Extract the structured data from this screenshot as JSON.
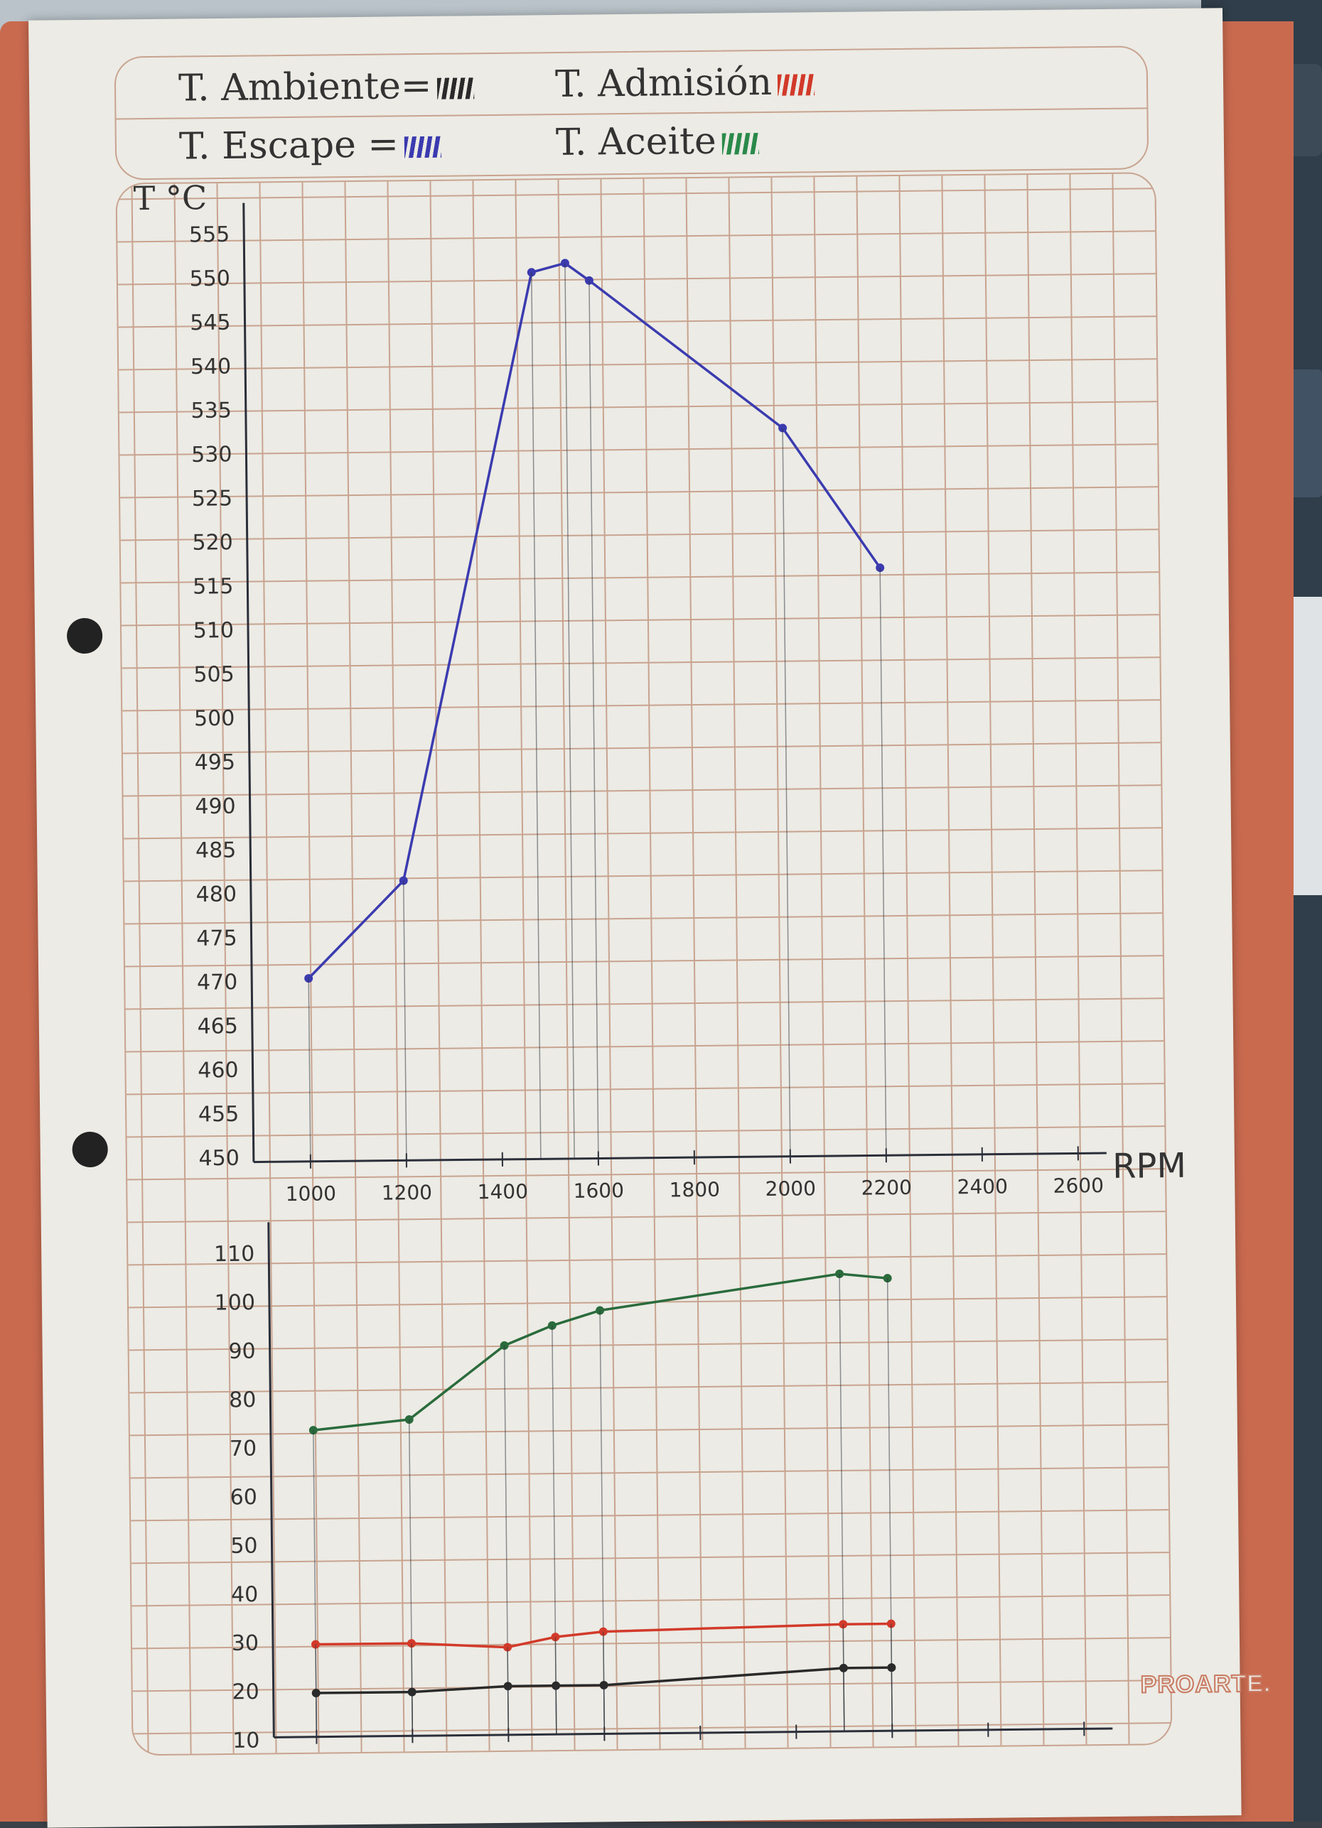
{
  "legend": {
    "ambient": "T. Ambiente=",
    "intake": "T. Admisión",
    "exhaust": "T. Escape =",
    "oil": "T. Aceite"
  },
  "y_label": "T °C",
  "brand": "PROARTE.",
  "colors": {
    "exhaust": "#3b3bb0",
    "oil": "#2a6b3c",
    "intake": "#d23a2a",
    "ambient": "#2a2a2a"
  },
  "chart_data": [
    {
      "type": "line",
      "x_label": "RPM",
      "x_ticks": [
        1000,
        1200,
        1400,
        1600,
        1800,
        2000,
        2200,
        2400,
        2600
      ],
      "x_tick_labels": [
        "1000",
        "1200",
        "1400",
        "1600",
        "1800",
        "2000",
        "2200",
        "2400",
        "2600"
      ],
      "xlim": [
        1000,
        2600
      ],
      "y_ticks": [
        450,
        455,
        460,
        465,
        470,
        475,
        480,
        485,
        490,
        495,
        500,
        505,
        510,
        515,
        520,
        525,
        530,
        535,
        540,
        545,
        550,
        555
      ],
      "ylim": [
        450,
        555
      ],
      "series": [
        {
          "name": "T. Escape",
          "x": [
            1000,
            1200,
            1480,
            1550,
            1600,
            2000,
            2200
          ],
          "y": [
            470,
            481,
            550,
            551,
            549,
            532,
            516
          ]
        }
      ]
    },
    {
      "type": "line",
      "x_label": "",
      "x_ticks": [
        1000,
        1200,
        1400,
        1600,
        1800,
        2000,
        2200,
        2400,
        2600
      ],
      "xlim": [
        1000,
        2600
      ],
      "y_ticks": [
        10,
        20,
        30,
        40,
        50,
        60,
        70,
        80,
        90,
        100,
        110
      ],
      "y_tick_labels": [
        "10",
        "20",
        "30",
        "40",
        "50",
        "60",
        "70",
        "80",
        "90",
        "100",
        "110"
      ],
      "ylim": [
        10,
        110
      ],
      "series": [
        {
          "name": "T. Aceite",
          "x": [
            1000,
            1200,
            1400,
            1500,
            1600,
            2100,
            2200
          ],
          "y": [
            73,
            75,
            90,
            94,
            97,
            104,
            103
          ]
        },
        {
          "name": "T. Admisión",
          "x": [
            1000,
            1200,
            1400,
            1500,
            1600,
            2100,
            2200
          ],
          "y": [
            29,
            29,
            28,
            30,
            31,
            32,
            32
          ]
        },
        {
          "name": "T. Ambiente",
          "x": [
            1000,
            1200,
            1400,
            1500,
            1600,
            2100,
            2200
          ],
          "y": [
            19,
            19,
            20,
            20,
            20,
            23,
            23
          ]
        }
      ]
    }
  ]
}
